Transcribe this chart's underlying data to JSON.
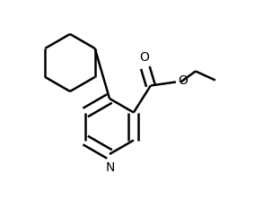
{
  "background_color": "#ffffff",
  "line_color": "#000000",
  "line_width": 1.8,
  "figsize": [
    3.03,
    2.31
  ],
  "dpi": 100,
  "xlim": [
    0.0,
    3.03
  ],
  "ylim": [
    0.0,
    2.31
  ]
}
